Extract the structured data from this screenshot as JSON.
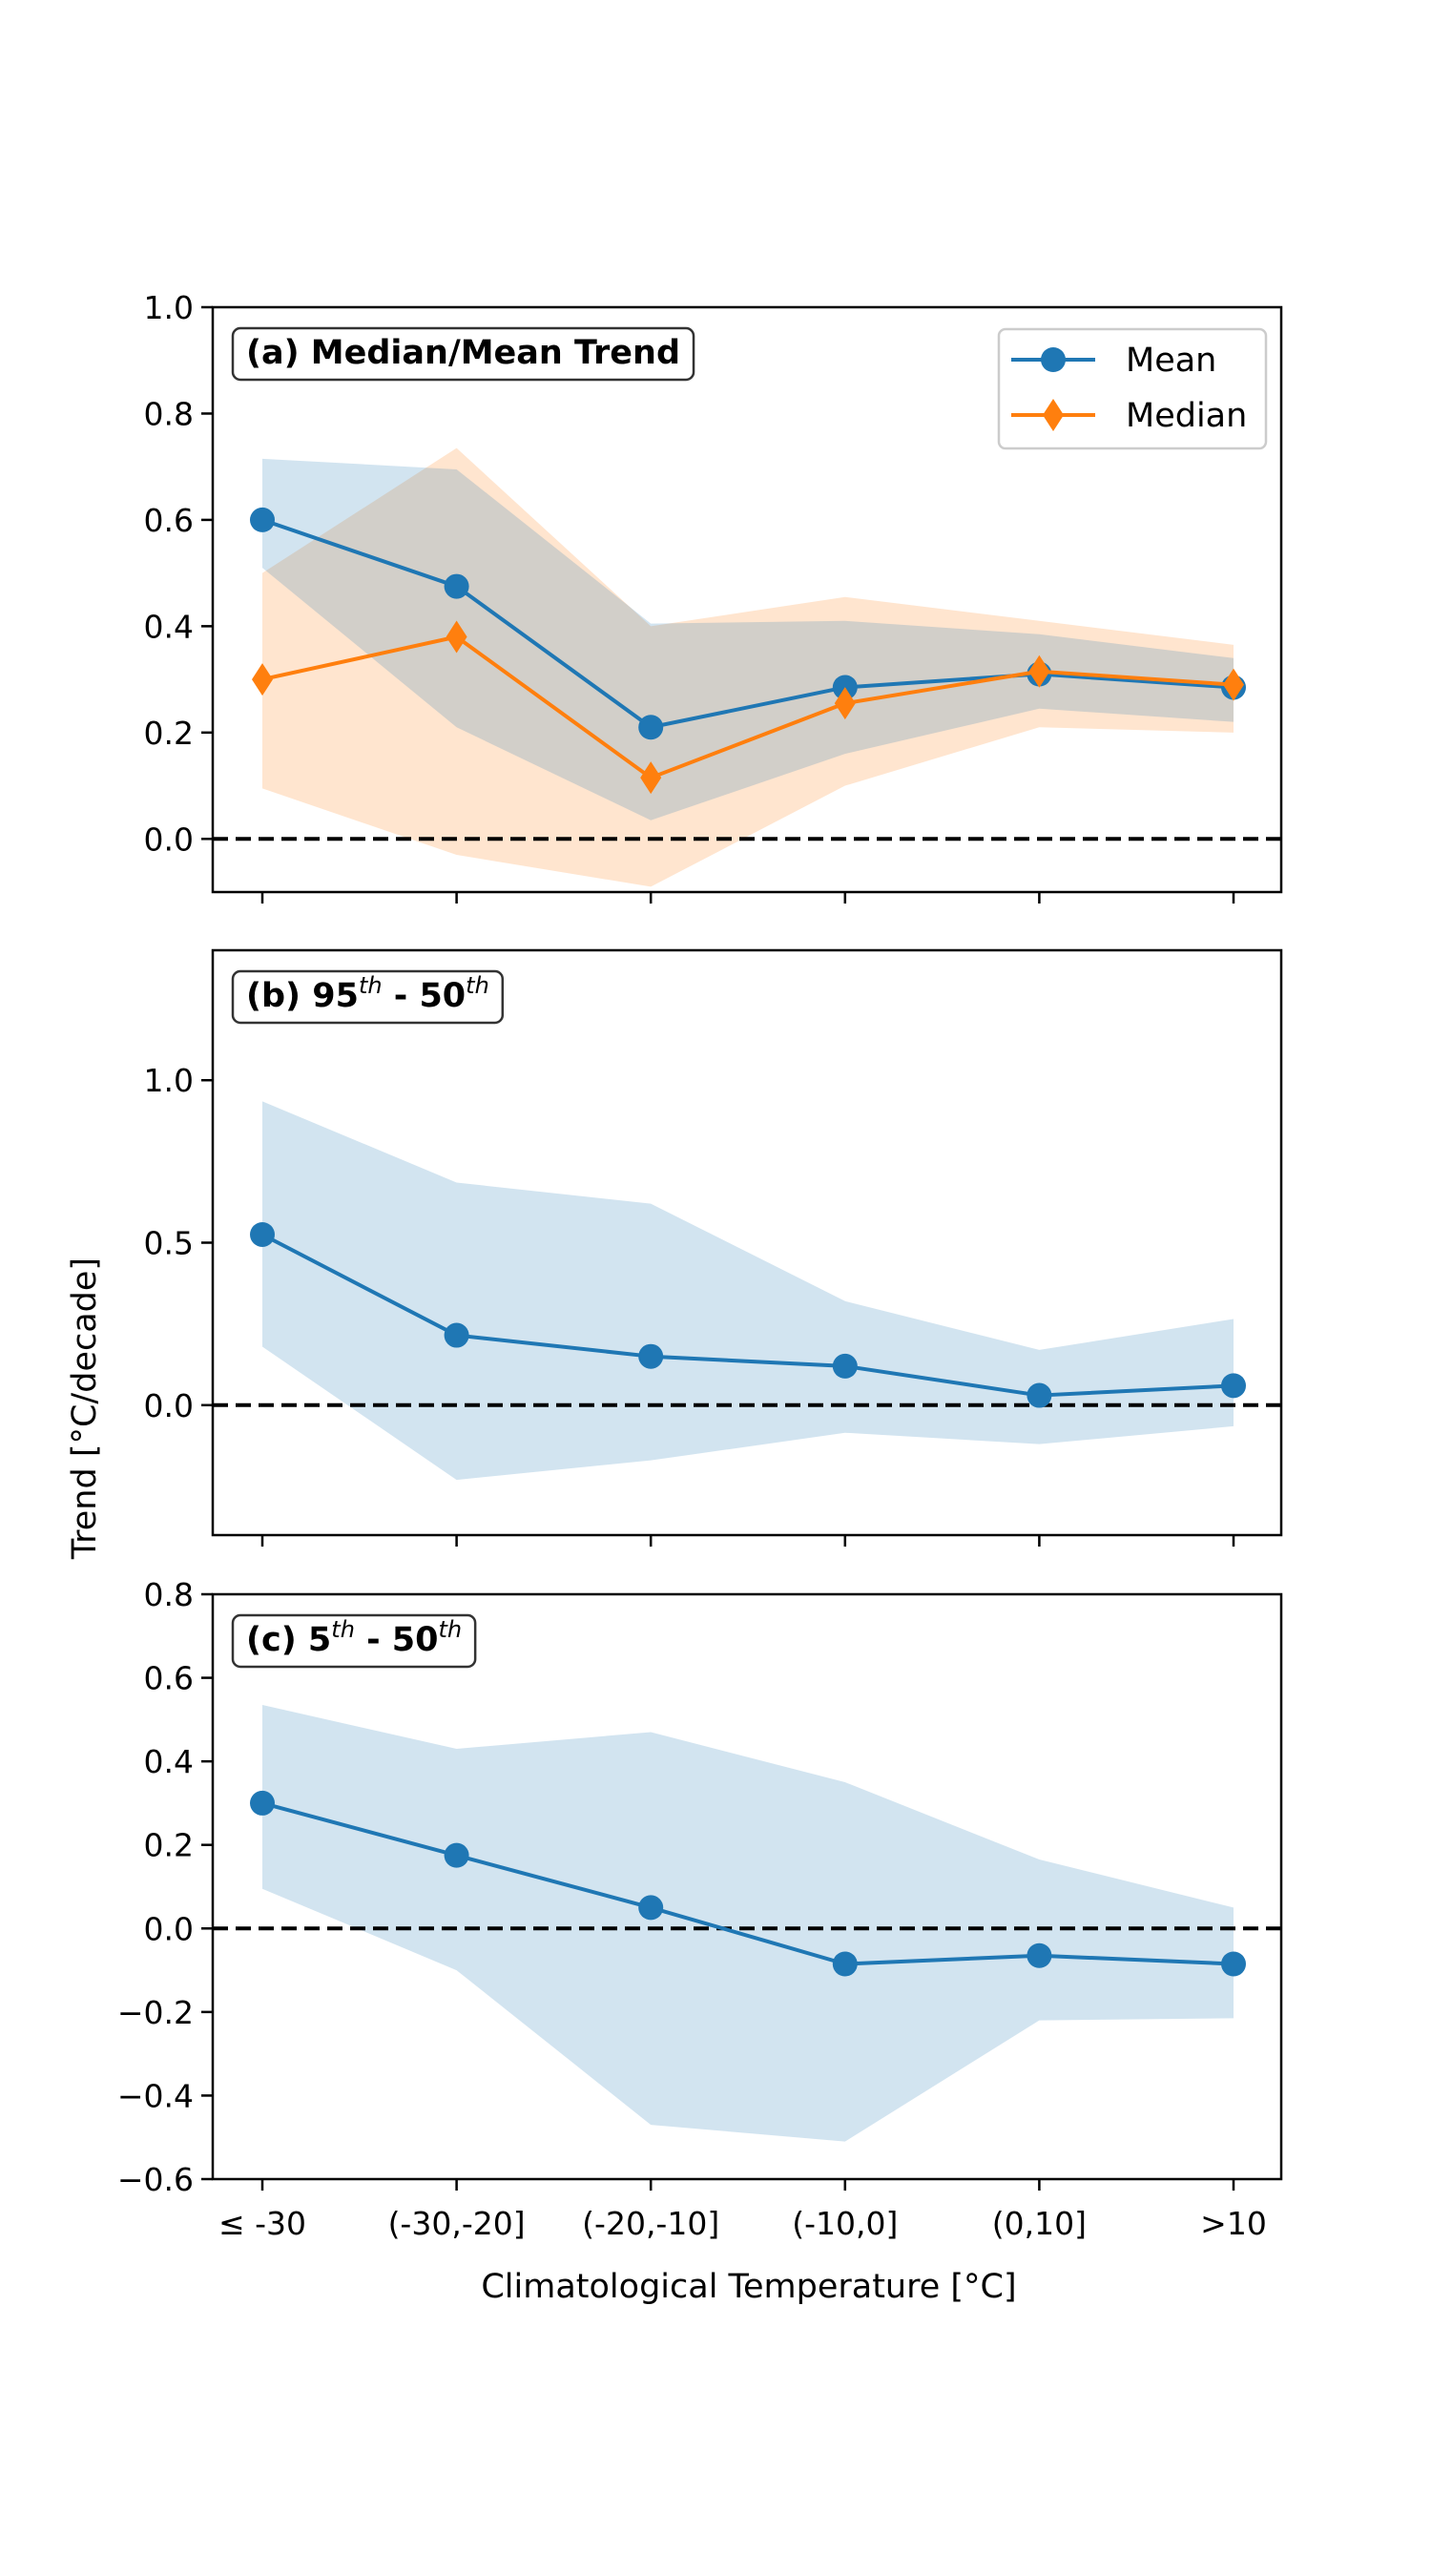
{
  "figure": {
    "xlabel": "Climatological Temperature [°C]",
    "ylabel": "Trend [°C/decade]"
  },
  "colors": {
    "mean": "#1f77b4",
    "median": "#ff7f0e",
    "mean_band": "#1f77b4",
    "median_band": "#ff7f0e",
    "zero_line": "#000000"
  },
  "chart_data": [
    {
      "type": "line",
      "panel_label": {
        "prefix": "(a) Median/Mean Trend",
        "sup": "",
        "mid": "",
        "sup2": ""
      },
      "categories": [
        "≤ -30",
        "(-30,-20]",
        "(-20,-10]",
        "(-10,0]",
        "(0,10]",
        ">10"
      ],
      "ylim": [
        -0.1,
        1.0
      ],
      "yticks": [
        0.0,
        0.2,
        0.4,
        0.6,
        0.8,
        1.0
      ],
      "ytick_labels": [
        "0.0",
        "0.2",
        "0.4",
        "0.6",
        "0.8",
        "1.0"
      ],
      "show_xtick_labels": false,
      "zero_line": true,
      "legend": {
        "position": "top-right",
        "entries": [
          "Mean",
          "Median"
        ]
      },
      "series": [
        {
          "name": "Mean",
          "marker": "circle",
          "color": "#1f77b4",
          "values": [
            0.6,
            0.475,
            0.21,
            0.285,
            0.31,
            0.285
          ],
          "band_lower": [
            0.51,
            0.21,
            0.035,
            0.16,
            0.245,
            0.22
          ],
          "band_upper": [
            0.715,
            0.695,
            0.405,
            0.41,
            0.385,
            0.34
          ]
        },
        {
          "name": "Median",
          "marker": "diamond",
          "color": "#ff7f0e",
          "values": [
            0.3,
            0.38,
            0.115,
            0.255,
            0.315,
            0.29
          ],
          "band_lower": [
            0.095,
            -0.03,
            -0.09,
            0.1,
            0.21,
            0.2
          ],
          "band_upper": [
            0.5,
            0.735,
            0.4,
            0.455,
            0.41,
            0.365
          ]
        }
      ]
    },
    {
      "type": "line",
      "panel_label": {
        "prefix": "(b) 95",
        "sup": "th",
        "mid": " - 50",
        "sup2": "th"
      },
      "categories": [
        "≤ -30",
        "(-30,-20]",
        "(-20,-10]",
        "(-10,0]",
        "(0,10]",
        ">10"
      ],
      "ylim": [
        -0.4,
        1.4
      ],
      "yticks": [
        0.0,
        0.5,
        1.0
      ],
      "ytick_labels": [
        "0.0",
        "0.5",
        "1.0"
      ],
      "show_xtick_labels": false,
      "zero_line": true,
      "series": [
        {
          "name": "",
          "marker": "circle",
          "color": "#1f77b4",
          "values": [
            0.525,
            0.215,
            0.15,
            0.12,
            0.03,
            0.06
          ],
          "band_lower": [
            0.18,
            -0.23,
            -0.17,
            -0.085,
            -0.12,
            -0.065
          ],
          "band_upper": [
            0.935,
            0.685,
            0.62,
            0.32,
            0.17,
            0.265
          ]
        }
      ]
    },
    {
      "type": "line",
      "panel_label": {
        "prefix": "(c) 5",
        "sup": "th",
        "mid": " - 50",
        "sup2": "th"
      },
      "categories": [
        "≤ -30",
        "(-30,-20]",
        "(-20,-10]",
        "(-10,0]",
        "(0,10]",
        ">10"
      ],
      "ylim": [
        -0.6,
        0.8
      ],
      "yticks": [
        -0.6,
        -0.4,
        -0.2,
        0.0,
        0.2,
        0.4,
        0.6,
        0.8
      ],
      "ytick_labels": [
        "−0.6",
        "−0.4",
        "−0.2",
        "0.0",
        "0.2",
        "0.4",
        "0.6",
        "0.8"
      ],
      "show_xtick_labels": true,
      "zero_line": true,
      "series": [
        {
          "name": "",
          "marker": "circle",
          "color": "#1f77b4",
          "values": [
            0.3,
            0.175,
            0.05,
            -0.085,
            -0.065,
            -0.085
          ],
          "band_lower": [
            0.095,
            -0.1,
            -0.47,
            -0.51,
            -0.22,
            -0.215
          ],
          "band_upper": [
            0.535,
            0.43,
            0.47,
            0.35,
            0.165,
            0.05
          ]
        }
      ]
    }
  ]
}
